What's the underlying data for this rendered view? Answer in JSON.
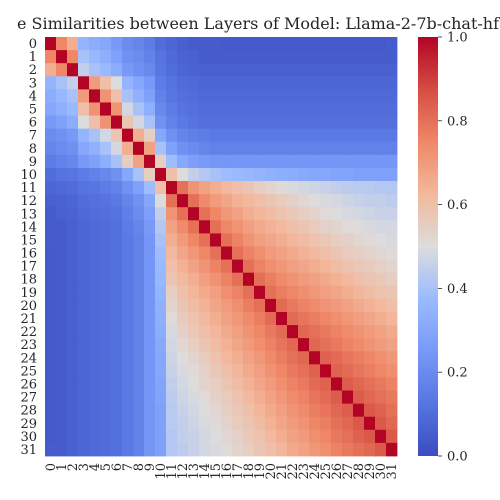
{
  "chart_data": {
    "type": "heatmap",
    "title": "e Similarities between Layers of Model: Llama-2-7b-chat-hf",
    "xlabel": "",
    "ylabel": "",
    "labels": [
      "0",
      "1",
      "2",
      "3",
      "4",
      "5",
      "6",
      "7",
      "8",
      "9",
      "10",
      "11",
      "12",
      "13",
      "14",
      "15",
      "16",
      "17",
      "18",
      "19",
      "20",
      "21",
      "22",
      "23",
      "24",
      "25",
      "26",
      "27",
      "28",
      "29",
      "30",
      "31"
    ],
    "colormap": "coolwarm",
    "vmin": 0.0,
    "vmax": 1.0,
    "colorbar_ticks": [
      "0.0",
      "0.2",
      "0.4",
      "0.6",
      "0.8",
      "1.0"
    ],
    "colorbar_tick_values": [
      0.0,
      0.2,
      0.4,
      0.6,
      0.8,
      1.0
    ],
    "values": [
      [
        1.0,
        0.75,
        0.65,
        0.35,
        0.32,
        0.3,
        0.25,
        0.2,
        0.18,
        0.15,
        0.1,
        0.08,
        0.06,
        0.05,
        0.05,
        0.05,
        0.04,
        0.04,
        0.04,
        0.04,
        0.04,
        0.04,
        0.04,
        0.04,
        0.04,
        0.04,
        0.04,
        0.04,
        0.04,
        0.04,
        0.04,
        0.05
      ],
      [
        0.75,
        1.0,
        0.75,
        0.4,
        0.36,
        0.33,
        0.28,
        0.22,
        0.2,
        0.17,
        0.12,
        0.09,
        0.07,
        0.06,
        0.05,
        0.05,
        0.05,
        0.05,
        0.05,
        0.05,
        0.05,
        0.05,
        0.05,
        0.05,
        0.05,
        0.05,
        0.05,
        0.05,
        0.05,
        0.05,
        0.05,
        0.05
      ],
      [
        0.65,
        0.75,
        1.0,
        0.45,
        0.4,
        0.37,
        0.32,
        0.25,
        0.22,
        0.19,
        0.13,
        0.1,
        0.08,
        0.07,
        0.06,
        0.06,
        0.06,
        0.06,
        0.06,
        0.06,
        0.06,
        0.06,
        0.06,
        0.06,
        0.06,
        0.06,
        0.06,
        0.06,
        0.06,
        0.06,
        0.06,
        0.06
      ],
      [
        0.35,
        0.4,
        0.45,
        1.0,
        0.7,
        0.6,
        0.5,
        0.35,
        0.3,
        0.25,
        0.15,
        0.12,
        0.1,
        0.09,
        0.08,
        0.08,
        0.08,
        0.08,
        0.08,
        0.08,
        0.08,
        0.08,
        0.08,
        0.08,
        0.08,
        0.08,
        0.08,
        0.08,
        0.08,
        0.08,
        0.08,
        0.08
      ],
      [
        0.32,
        0.36,
        0.4,
        0.7,
        1.0,
        0.72,
        0.6,
        0.4,
        0.34,
        0.28,
        0.17,
        0.13,
        0.11,
        0.1,
        0.09,
        0.09,
        0.09,
        0.09,
        0.09,
        0.09,
        0.09,
        0.09,
        0.09,
        0.09,
        0.09,
        0.09,
        0.09,
        0.09,
        0.09,
        0.09,
        0.09,
        0.09
      ],
      [
        0.3,
        0.33,
        0.37,
        0.6,
        0.72,
        1.0,
        0.72,
        0.48,
        0.4,
        0.33,
        0.19,
        0.15,
        0.12,
        0.11,
        0.1,
        0.1,
        0.1,
        0.1,
        0.1,
        0.1,
        0.1,
        0.1,
        0.1,
        0.1,
        0.1,
        0.1,
        0.1,
        0.1,
        0.1,
        0.1,
        0.1,
        0.1
      ],
      [
        0.25,
        0.28,
        0.32,
        0.5,
        0.6,
        0.72,
        1.0,
        0.58,
        0.48,
        0.4,
        0.22,
        0.17,
        0.14,
        0.12,
        0.11,
        0.11,
        0.11,
        0.11,
        0.11,
        0.11,
        0.11,
        0.11,
        0.11,
        0.11,
        0.11,
        0.11,
        0.11,
        0.11,
        0.11,
        0.11,
        0.11,
        0.11
      ],
      [
        0.2,
        0.22,
        0.25,
        0.35,
        0.4,
        0.48,
        0.58,
        1.0,
        0.65,
        0.55,
        0.3,
        0.22,
        0.18,
        0.16,
        0.15,
        0.14,
        0.14,
        0.14,
        0.14,
        0.14,
        0.14,
        0.14,
        0.14,
        0.14,
        0.14,
        0.14,
        0.14,
        0.14,
        0.14,
        0.14,
        0.14,
        0.14
      ],
      [
        0.18,
        0.2,
        0.22,
        0.3,
        0.34,
        0.4,
        0.48,
        0.65,
        1.0,
        0.68,
        0.4,
        0.28,
        0.22,
        0.2,
        0.18,
        0.17,
        0.17,
        0.17,
        0.17,
        0.17,
        0.17,
        0.17,
        0.17,
        0.17,
        0.17,
        0.17,
        0.17,
        0.17,
        0.17,
        0.17,
        0.17,
        0.17
      ],
      [
        0.15,
        0.17,
        0.19,
        0.25,
        0.28,
        0.33,
        0.4,
        0.55,
        0.68,
        1.0,
        0.55,
        0.38,
        0.3,
        0.27,
        0.25,
        0.24,
        0.24,
        0.24,
        0.24,
        0.24,
        0.24,
        0.24,
        0.24,
        0.24,
        0.24,
        0.24,
        0.24,
        0.24,
        0.24,
        0.24,
        0.24,
        0.24
      ],
      [
        0.1,
        0.12,
        0.13,
        0.15,
        0.17,
        0.19,
        0.22,
        0.3,
        0.4,
        0.55,
        1.0,
        0.6,
        0.5,
        0.45,
        0.42,
        0.4,
        0.38,
        0.37,
        0.36,
        0.35,
        0.34,
        0.33,
        0.32,
        0.31,
        0.3,
        0.3,
        0.29,
        0.29,
        0.28,
        0.28,
        0.28,
        0.28
      ],
      [
        0.08,
        0.09,
        0.1,
        0.12,
        0.13,
        0.15,
        0.17,
        0.22,
        0.28,
        0.38,
        0.6,
        1.0,
        0.8,
        0.72,
        0.68,
        0.65,
        0.62,
        0.6,
        0.58,
        0.55,
        0.53,
        0.51,
        0.49,
        0.48,
        0.47,
        0.46,
        0.45,
        0.44,
        0.43,
        0.43,
        0.42,
        0.42
      ],
      [
        0.06,
        0.07,
        0.08,
        0.1,
        0.11,
        0.12,
        0.14,
        0.18,
        0.22,
        0.3,
        0.5,
        0.8,
        1.0,
        0.8,
        0.74,
        0.7,
        0.67,
        0.64,
        0.62,
        0.6,
        0.58,
        0.56,
        0.54,
        0.52,
        0.5,
        0.49,
        0.48,
        0.47,
        0.46,
        0.45,
        0.45,
        0.44
      ],
      [
        0.05,
        0.06,
        0.07,
        0.09,
        0.1,
        0.11,
        0.12,
        0.16,
        0.2,
        0.27,
        0.45,
        0.72,
        0.8,
        1.0,
        0.8,
        0.75,
        0.71,
        0.68,
        0.65,
        0.63,
        0.61,
        0.59,
        0.57,
        0.55,
        0.53,
        0.51,
        0.5,
        0.49,
        0.48,
        0.47,
        0.46,
        0.46
      ],
      [
        0.05,
        0.05,
        0.06,
        0.08,
        0.09,
        0.1,
        0.11,
        0.15,
        0.18,
        0.25,
        0.42,
        0.68,
        0.74,
        0.8,
        1.0,
        0.8,
        0.75,
        0.72,
        0.69,
        0.66,
        0.64,
        0.62,
        0.6,
        0.58,
        0.56,
        0.54,
        0.53,
        0.51,
        0.5,
        0.49,
        0.48,
        0.48
      ],
      [
        0.05,
        0.05,
        0.06,
        0.08,
        0.09,
        0.1,
        0.11,
        0.14,
        0.17,
        0.24,
        0.4,
        0.65,
        0.7,
        0.75,
        0.8,
        1.0,
        0.8,
        0.76,
        0.72,
        0.69,
        0.67,
        0.65,
        0.63,
        0.61,
        0.59,
        0.57,
        0.55,
        0.54,
        0.52,
        0.51,
        0.5,
        0.49
      ],
      [
        0.04,
        0.05,
        0.06,
        0.08,
        0.09,
        0.1,
        0.11,
        0.14,
        0.17,
        0.24,
        0.38,
        0.62,
        0.67,
        0.71,
        0.75,
        0.8,
        1.0,
        0.8,
        0.76,
        0.73,
        0.7,
        0.68,
        0.66,
        0.64,
        0.62,
        0.6,
        0.58,
        0.56,
        0.55,
        0.53,
        0.52,
        0.51
      ],
      [
        0.04,
        0.05,
        0.06,
        0.08,
        0.09,
        0.1,
        0.11,
        0.14,
        0.17,
        0.24,
        0.37,
        0.6,
        0.64,
        0.68,
        0.72,
        0.76,
        0.8,
        1.0,
        0.8,
        0.76,
        0.73,
        0.71,
        0.69,
        0.67,
        0.65,
        0.63,
        0.61,
        0.59,
        0.57,
        0.56,
        0.54,
        0.53
      ],
      [
        0.04,
        0.05,
        0.06,
        0.08,
        0.09,
        0.1,
        0.11,
        0.14,
        0.17,
        0.24,
        0.36,
        0.58,
        0.62,
        0.65,
        0.69,
        0.72,
        0.76,
        0.8,
        1.0,
        0.8,
        0.77,
        0.74,
        0.72,
        0.7,
        0.68,
        0.66,
        0.64,
        0.62,
        0.6,
        0.58,
        0.57,
        0.55
      ],
      [
        0.04,
        0.05,
        0.06,
        0.08,
        0.09,
        0.1,
        0.11,
        0.14,
        0.17,
        0.24,
        0.35,
        0.55,
        0.6,
        0.63,
        0.66,
        0.69,
        0.73,
        0.76,
        0.8,
        1.0,
        0.8,
        0.77,
        0.75,
        0.73,
        0.71,
        0.69,
        0.67,
        0.65,
        0.63,
        0.61,
        0.59,
        0.58
      ],
      [
        0.04,
        0.05,
        0.06,
        0.08,
        0.09,
        0.1,
        0.11,
        0.14,
        0.17,
        0.24,
        0.34,
        0.53,
        0.58,
        0.61,
        0.64,
        0.67,
        0.7,
        0.73,
        0.77,
        0.8,
        1.0,
        0.81,
        0.78,
        0.76,
        0.74,
        0.72,
        0.7,
        0.68,
        0.66,
        0.64,
        0.62,
        0.6
      ],
      [
        0.04,
        0.05,
        0.06,
        0.08,
        0.09,
        0.1,
        0.11,
        0.14,
        0.17,
        0.24,
        0.33,
        0.51,
        0.56,
        0.59,
        0.62,
        0.65,
        0.68,
        0.71,
        0.74,
        0.77,
        0.81,
        1.0,
        0.81,
        0.79,
        0.77,
        0.75,
        0.73,
        0.71,
        0.69,
        0.67,
        0.65,
        0.63
      ],
      [
        0.04,
        0.05,
        0.06,
        0.08,
        0.09,
        0.1,
        0.11,
        0.14,
        0.17,
        0.24,
        0.32,
        0.49,
        0.54,
        0.57,
        0.6,
        0.63,
        0.66,
        0.69,
        0.72,
        0.75,
        0.78,
        0.81,
        1.0,
        0.82,
        0.8,
        0.78,
        0.76,
        0.74,
        0.72,
        0.7,
        0.68,
        0.66
      ],
      [
        0.04,
        0.05,
        0.06,
        0.08,
        0.09,
        0.1,
        0.11,
        0.14,
        0.17,
        0.24,
        0.31,
        0.48,
        0.52,
        0.55,
        0.58,
        0.61,
        0.64,
        0.67,
        0.7,
        0.73,
        0.76,
        0.79,
        0.82,
        1.0,
        0.82,
        0.8,
        0.78,
        0.76,
        0.74,
        0.72,
        0.7,
        0.68
      ],
      [
        0.04,
        0.05,
        0.06,
        0.08,
        0.09,
        0.1,
        0.11,
        0.14,
        0.17,
        0.24,
        0.3,
        0.47,
        0.5,
        0.53,
        0.56,
        0.59,
        0.62,
        0.65,
        0.68,
        0.71,
        0.74,
        0.77,
        0.8,
        0.82,
        1.0,
        0.83,
        0.81,
        0.79,
        0.77,
        0.75,
        0.73,
        0.71
      ],
      [
        0.04,
        0.05,
        0.06,
        0.08,
        0.09,
        0.1,
        0.11,
        0.14,
        0.17,
        0.24,
        0.3,
        0.46,
        0.49,
        0.51,
        0.54,
        0.57,
        0.6,
        0.63,
        0.66,
        0.69,
        0.72,
        0.75,
        0.78,
        0.8,
        0.83,
        1.0,
        0.83,
        0.81,
        0.79,
        0.77,
        0.75,
        0.73
      ],
      [
        0.04,
        0.05,
        0.06,
        0.08,
        0.09,
        0.1,
        0.11,
        0.14,
        0.17,
        0.24,
        0.29,
        0.45,
        0.48,
        0.5,
        0.53,
        0.55,
        0.58,
        0.61,
        0.64,
        0.67,
        0.7,
        0.73,
        0.76,
        0.78,
        0.81,
        0.83,
        1.0,
        0.84,
        0.82,
        0.8,
        0.78,
        0.76
      ],
      [
        0.04,
        0.05,
        0.06,
        0.08,
        0.09,
        0.1,
        0.11,
        0.14,
        0.17,
        0.24,
        0.29,
        0.44,
        0.47,
        0.49,
        0.51,
        0.54,
        0.56,
        0.59,
        0.62,
        0.65,
        0.68,
        0.71,
        0.74,
        0.76,
        0.79,
        0.81,
        0.84,
        1.0,
        0.84,
        0.82,
        0.8,
        0.78
      ],
      [
        0.04,
        0.05,
        0.06,
        0.08,
        0.09,
        0.1,
        0.11,
        0.14,
        0.17,
        0.24,
        0.28,
        0.43,
        0.46,
        0.48,
        0.5,
        0.52,
        0.55,
        0.57,
        0.6,
        0.63,
        0.66,
        0.69,
        0.72,
        0.74,
        0.77,
        0.79,
        0.82,
        0.84,
        1.0,
        0.85,
        0.83,
        0.8
      ],
      [
        0.04,
        0.05,
        0.06,
        0.08,
        0.09,
        0.1,
        0.11,
        0.14,
        0.17,
        0.24,
        0.28,
        0.43,
        0.45,
        0.47,
        0.49,
        0.51,
        0.53,
        0.56,
        0.58,
        0.61,
        0.64,
        0.67,
        0.7,
        0.72,
        0.75,
        0.77,
        0.8,
        0.82,
        0.85,
        1.0,
        0.85,
        0.82
      ],
      [
        0.04,
        0.05,
        0.06,
        0.08,
        0.09,
        0.1,
        0.11,
        0.14,
        0.17,
        0.24,
        0.28,
        0.42,
        0.45,
        0.46,
        0.48,
        0.5,
        0.52,
        0.54,
        0.57,
        0.59,
        0.62,
        0.65,
        0.68,
        0.7,
        0.73,
        0.75,
        0.78,
        0.8,
        0.83,
        0.85,
        1.0,
        0.85
      ],
      [
        0.05,
        0.05,
        0.06,
        0.08,
        0.09,
        0.1,
        0.11,
        0.14,
        0.17,
        0.24,
        0.28,
        0.42,
        0.44,
        0.46,
        0.48,
        0.49,
        0.51,
        0.53,
        0.55,
        0.58,
        0.6,
        0.63,
        0.66,
        0.68,
        0.71,
        0.73,
        0.76,
        0.78,
        0.8,
        0.82,
        0.85,
        1.0
      ]
    ]
  }
}
